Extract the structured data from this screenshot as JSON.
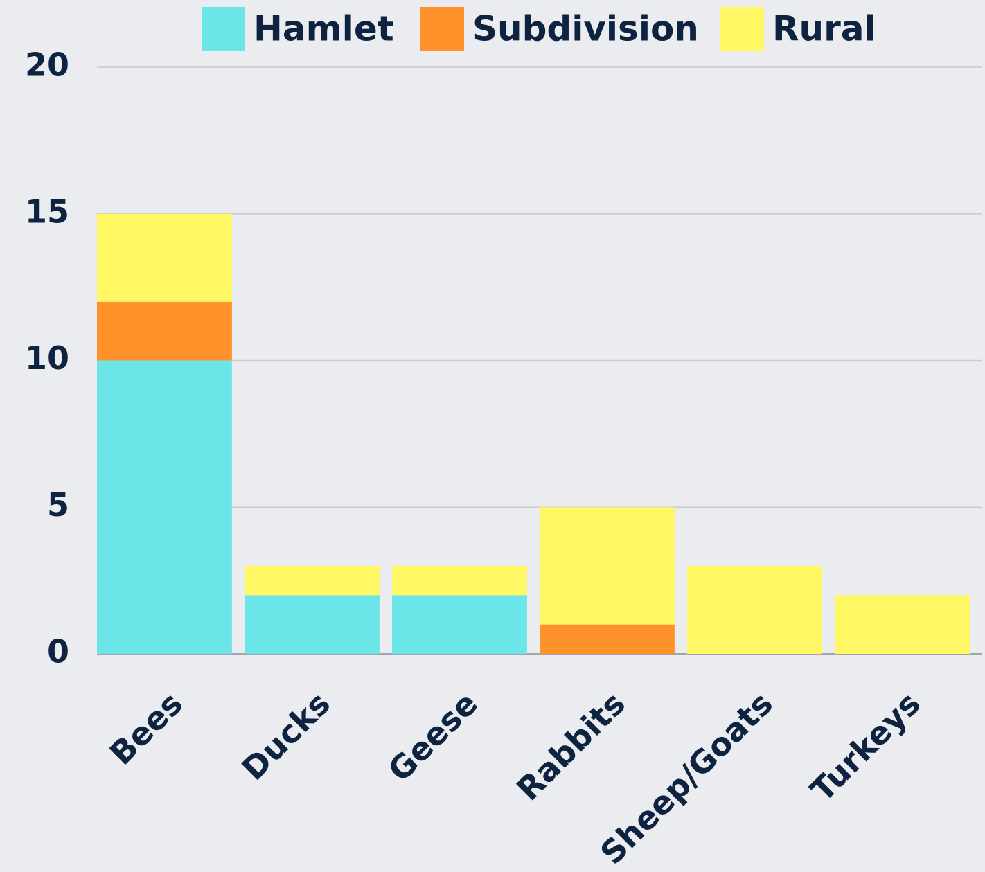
{
  "chart_data": {
    "type": "stacked-bar",
    "categories": [
      "Bees",
      "Ducks",
      "Geese",
      "Rabbits",
      "Sheep/Goats",
      "Turkeys"
    ],
    "series": [
      {
        "name": "Hamlet",
        "color": "#6ce5e8",
        "values": [
          10,
          2,
          2,
          0,
          0,
          0
        ]
      },
      {
        "name": "Subdivision",
        "color": "#ff922b",
        "values": [
          2,
          0,
          0,
          1,
          0,
          0
        ]
      },
      {
        "name": "Rural",
        "color": "#fff763",
        "values": [
          3,
          1,
          1,
          4,
          3,
          2
        ]
      }
    ],
    "ylim": [
      0,
      20
    ],
    "yticks": [
      0,
      5,
      10,
      15,
      20
    ],
    "grid": true,
    "legend": "top"
  }
}
